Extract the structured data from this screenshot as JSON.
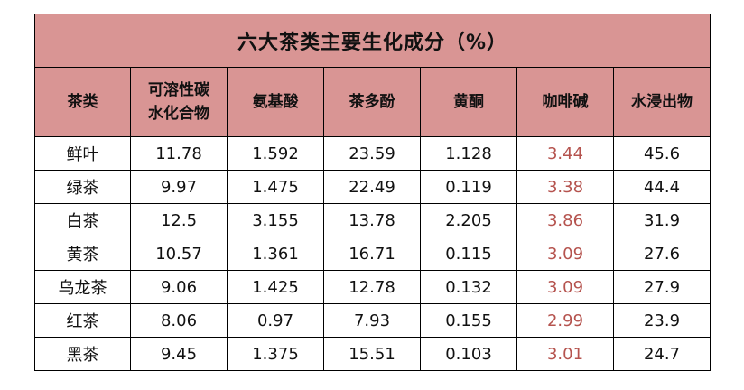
{
  "title": "六大茶类主要生化成分（%）",
  "headers": {
    "c0": "茶类",
    "c1_line1": "可溶性碳",
    "c1_line2": "水化合物",
    "c2": "氨基酸",
    "c3": "茶多酚",
    "c4": "黄酮",
    "c5": "咖啡碱",
    "c6": "水浸出物"
  },
  "rows": [
    {
      "c0": "鲜叶",
      "c1": "11.78",
      "c2": "1.592",
      "c3": "23.59",
      "c4": "1.128",
      "c5": "3.44",
      "c6": "45.6"
    },
    {
      "c0": "绿茶",
      "c1": "9.97",
      "c2": "1.475",
      "c3": "22.49",
      "c4": "0.119",
      "c5": "3.38",
      "c6": "44.4"
    },
    {
      "c0": "白茶",
      "c1": "12.5",
      "c2": "3.155",
      "c3": "13.78",
      "c4": "2.205",
      "c5": "3.86",
      "c6": "31.9"
    },
    {
      "c0": "黄茶",
      "c1": "10.57",
      "c2": "1.361",
      "c3": "16.71",
      "c4": "0.115",
      "c5": "3.09",
      "c6": "27.6"
    },
    {
      "c0": "乌龙茶",
      "c1": "9.06",
      "c2": "1.425",
      "c3": "12.78",
      "c4": "0.132",
      "c5": "3.09",
      "c6": "27.9"
    },
    {
      "c0": "红茶",
      "c1": "8.06",
      "c2": "0.97",
      "c3": "7.93",
      "c4": "0.155",
      "c5": "2.99",
      "c6": "23.9"
    },
    {
      "c0": "黑茶",
      "c1": "9.45",
      "c2": "1.375",
      "c3": "15.51",
      "c4": "0.103",
      "c5": "3.01",
      "c6": "24.7"
    }
  ],
  "colors": {
    "header_bg": "#d99594",
    "highlight_text": "#b5534e"
  }
}
